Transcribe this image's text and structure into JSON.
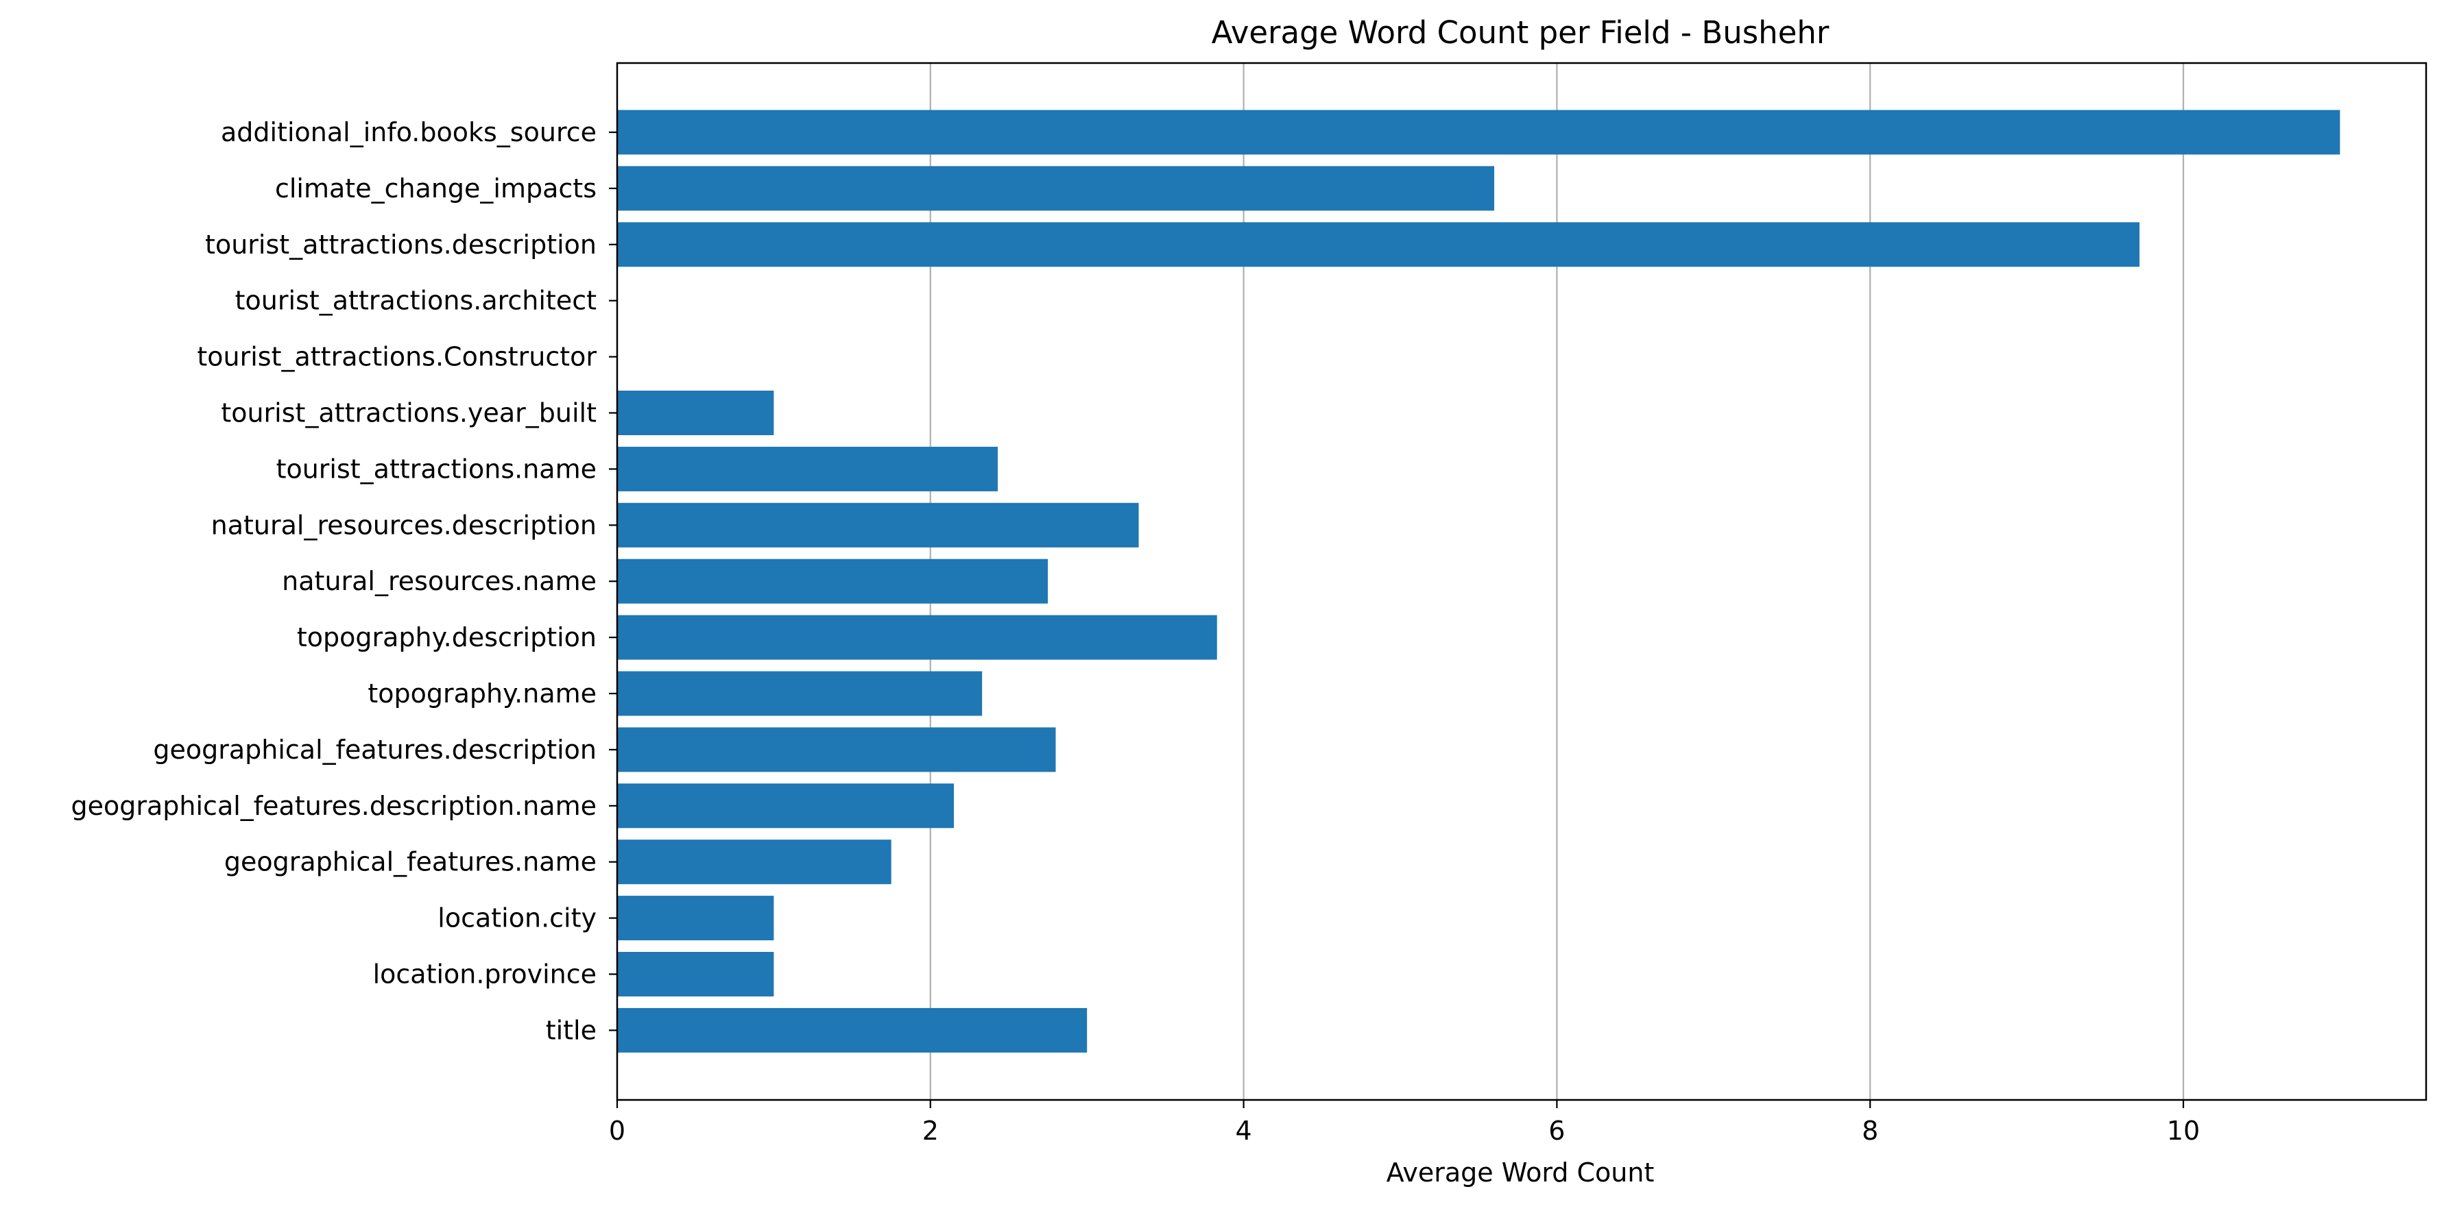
{
  "chart_data": {
    "type": "bar",
    "orientation": "horizontal",
    "title": "Average Word Count per Field - Bushehr",
    "xlabel": "Average Word Count",
    "ylabel": "",
    "xlim": [
      0,
      11.55
    ],
    "xticks": [
      0,
      2,
      4,
      6,
      8,
      10
    ],
    "grid": "x-axis vertical lines",
    "legend": "none",
    "bar_color": "#1f77b4",
    "categories": [
      "additional_info.books_source",
      "climate_change_impacts",
      "tourist_attractions.description",
      "tourist_attractions.architect",
      "tourist_attractions.Constructor",
      "tourist_attractions.year_built",
      "tourist_attractions.name",
      "natural_resources.description",
      "natural_resources.name",
      "topography.description",
      "topography.name",
      "geographical_features.description",
      "geographical_features.description.name",
      "geographical_features.name",
      "location.city",
      "location.province",
      "title"
    ],
    "values": [
      11.0,
      5.6,
      9.72,
      0,
      0,
      1.0,
      2.43,
      3.33,
      2.75,
      3.83,
      2.33,
      2.8,
      2.15,
      1.75,
      1.0,
      1.0,
      3.0
    ]
  }
}
